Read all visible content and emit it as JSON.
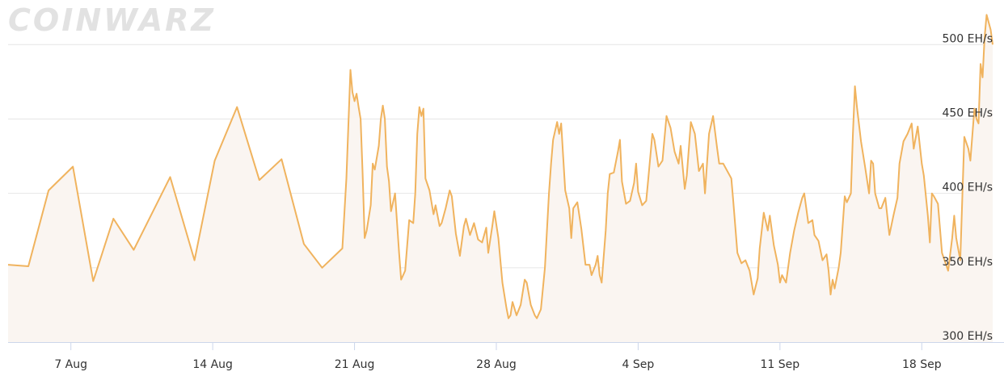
{
  "watermark": "COINWARZ",
  "chart_data": {
    "type": "area",
    "y_unit": "EH/s",
    "ylim": [
      300,
      530
    ],
    "y_ticks": [
      {
        "value": 300,
        "label": "300 EH/s"
      },
      {
        "value": 350,
        "label": "350 EH/s"
      },
      {
        "value": 400,
        "label": "400 EH/s"
      },
      {
        "value": 450,
        "label": "450 EH/s"
      },
      {
        "value": 500,
        "label": "500 EH/s"
      }
    ],
    "xlim": [
      2.9,
      51.5
    ],
    "x_ticks": [
      {
        "value": 6,
        "label": "7 Aug"
      },
      {
        "value": 13,
        "label": "14 Aug"
      },
      {
        "value": 20,
        "label": "21 Aug"
      },
      {
        "value": 27,
        "label": "28 Aug"
      },
      {
        "value": 34,
        "label": "4 Sep"
      },
      {
        "value": 41,
        "label": "11 Sep"
      },
      {
        "value": 48,
        "label": "18 Sep"
      }
    ],
    "grid": true,
    "line_color": "#f0b35e",
    "fill_color": "#faf5f1",
    "series": [
      {
        "x_unit": "days since 1 Aug",
        "points": [
          [
            2.9,
            352
          ],
          [
            3.9,
            351
          ],
          [
            4.9,
            402
          ],
          [
            6.1,
            418
          ],
          [
            7.1,
            341
          ],
          [
            8.1,
            383
          ],
          [
            9.1,
            362
          ],
          [
            10.9,
            411
          ],
          [
            12.1,
            355
          ],
          [
            13.1,
            422
          ],
          [
            14.2,
            458
          ],
          [
            15.3,
            409
          ],
          [
            16.4,
            423
          ],
          [
            17.5,
            366
          ],
          [
            18.4,
            350
          ],
          [
            19.4,
            363
          ],
          [
            19.6,
            410
          ],
          [
            19.8,
            483
          ],
          [
            19.9,
            468
          ],
          [
            20.0,
            462
          ],
          [
            20.1,
            467
          ],
          [
            20.2,
            458
          ],
          [
            20.3,
            450
          ],
          [
            20.4,
            413
          ],
          [
            20.5,
            370
          ],
          [
            20.6,
            375
          ],
          [
            20.8,
            392
          ],
          [
            20.9,
            420
          ],
          [
            21.0,
            416
          ],
          [
            21.2,
            432
          ],
          [
            21.3,
            450
          ],
          [
            21.4,
            459
          ],
          [
            21.5,
            450
          ],
          [
            21.6,
            418
          ],
          [
            21.7,
            408
          ],
          [
            21.8,
            388
          ],
          [
            22.0,
            400
          ],
          [
            22.1,
            380
          ],
          [
            22.2,
            360
          ],
          [
            22.3,
            342
          ],
          [
            22.5,
            348
          ],
          [
            22.7,
            382
          ],
          [
            22.9,
            380
          ],
          [
            23.0,
            400
          ],
          [
            23.1,
            440
          ],
          [
            23.2,
            458
          ],
          [
            23.3,
            452
          ],
          [
            23.4,
            457
          ],
          [
            23.5,
            410
          ],
          [
            23.7,
            402
          ],
          [
            23.9,
            386
          ],
          [
            24.0,
            392
          ],
          [
            24.2,
            378
          ],
          [
            24.3,
            380
          ],
          [
            24.5,
            390
          ],
          [
            24.7,
            402
          ],
          [
            24.8,
            398
          ],
          [
            25.0,
            373
          ],
          [
            25.2,
            358
          ],
          [
            25.4,
            378
          ],
          [
            25.5,
            383
          ],
          [
            25.7,
            372
          ],
          [
            25.9,
            380
          ],
          [
            26.1,
            369
          ],
          [
            26.3,
            367
          ],
          [
            26.5,
            377
          ],
          [
            26.6,
            360
          ],
          [
            26.8,
            378
          ],
          [
            26.9,
            388
          ],
          [
            27.1,
            370
          ],
          [
            27.3,
            340
          ],
          [
            27.5,
            323
          ],
          [
            27.6,
            316
          ],
          [
            27.7,
            318
          ],
          [
            27.8,
            327
          ],
          [
            28.0,
            318
          ],
          [
            28.2,
            325
          ],
          [
            28.4,
            342
          ],
          [
            28.5,
            340
          ],
          [
            28.7,
            325
          ],
          [
            28.9,
            318
          ],
          [
            29.0,
            316
          ],
          [
            29.2,
            322
          ],
          [
            29.4,
            350
          ],
          [
            29.6,
            400
          ],
          [
            29.7,
            420
          ],
          [
            29.8,
            436
          ],
          [
            30.0,
            448
          ],
          [
            30.1,
            440
          ],
          [
            30.2,
            447
          ],
          [
            30.4,
            402
          ],
          [
            30.6,
            390
          ],
          [
            30.7,
            370
          ],
          [
            30.8,
            390
          ],
          [
            31.0,
            394
          ],
          [
            31.2,
            376
          ],
          [
            31.4,
            352
          ],
          [
            31.6,
            352
          ],
          [
            31.7,
            345
          ],
          [
            31.9,
            352
          ],
          [
            32.0,
            358
          ],
          [
            32.1,
            345
          ],
          [
            32.2,
            340
          ],
          [
            32.4,
            375
          ],
          [
            32.5,
            400
          ],
          [
            32.6,
            413
          ],
          [
            32.8,
            414
          ],
          [
            33.0,
            428
          ],
          [
            33.1,
            436
          ],
          [
            33.2,
            408
          ],
          [
            33.4,
            393
          ],
          [
            33.6,
            395
          ],
          [
            33.8,
            407
          ],
          [
            33.9,
            420
          ],
          [
            34.0,
            401
          ],
          [
            34.2,
            392
          ],
          [
            34.4,
            395
          ],
          [
            34.5,
            410
          ],
          [
            34.7,
            440
          ],
          [
            34.8,
            436
          ],
          [
            35.0,
            418
          ],
          [
            35.2,
            422
          ],
          [
            35.4,
            452
          ],
          [
            35.6,
            444
          ],
          [
            35.8,
            428
          ],
          [
            36.0,
            420
          ],
          [
            36.1,
            432
          ],
          [
            36.3,
            403
          ],
          [
            36.4,
            412
          ],
          [
            36.6,
            448
          ],
          [
            36.8,
            440
          ],
          [
            37.0,
            415
          ],
          [
            37.2,
            420
          ],
          [
            37.3,
            400
          ],
          [
            37.5,
            440
          ],
          [
            37.7,
            452
          ],
          [
            37.9,
            430
          ],
          [
            38.0,
            420
          ],
          [
            38.2,
            420
          ],
          [
            38.4,
            415
          ],
          [
            38.6,
            410
          ],
          [
            38.7,
            394
          ],
          [
            38.9,
            360
          ],
          [
            39.1,
            353
          ],
          [
            39.3,
            355
          ],
          [
            39.5,
            348
          ],
          [
            39.7,
            332
          ],
          [
            39.9,
            343
          ],
          [
            40.0,
            363
          ],
          [
            40.2,
            387
          ],
          [
            40.4,
            375
          ],
          [
            40.5,
            385
          ],
          [
            40.7,
            365
          ],
          [
            40.9,
            352
          ],
          [
            41.0,
            340
          ],
          [
            41.1,
            345
          ],
          [
            41.3,
            340
          ],
          [
            41.5,
            360
          ],
          [
            41.7,
            375
          ],
          [
            41.9,
            387
          ],
          [
            42.1,
            397
          ],
          [
            42.2,
            400
          ],
          [
            42.4,
            380
          ],
          [
            42.6,
            382
          ],
          [
            42.7,
            372
          ],
          [
            42.9,
            368
          ],
          [
            43.1,
            355
          ],
          [
            43.3,
            359
          ],
          [
            43.4,
            348
          ],
          [
            43.5,
            332
          ],
          [
            43.6,
            342
          ],
          [
            43.7,
            336
          ],
          [
            43.9,
            350
          ],
          [
            44.0,
            360
          ],
          [
            44.2,
            398
          ],
          [
            44.3,
            394
          ],
          [
            44.5,
            400
          ],
          [
            44.6,
            440
          ],
          [
            44.7,
            472
          ],
          [
            44.8,
            458
          ],
          [
            45.0,
            435
          ],
          [
            45.2,
            418
          ],
          [
            45.4,
            400
          ],
          [
            45.5,
            422
          ],
          [
            45.6,
            420
          ],
          [
            45.7,
            400
          ],
          [
            45.9,
            390
          ],
          [
            46.0,
            390
          ],
          [
            46.2,
            397
          ],
          [
            46.4,
            372
          ],
          [
            46.6,
            385
          ],
          [
            46.8,
            397
          ],
          [
            46.9,
            420
          ],
          [
            47.1,
            435
          ],
          [
            47.3,
            440
          ],
          [
            47.5,
            447
          ],
          [
            47.6,
            430
          ],
          [
            47.8,
            445
          ],
          [
            48.0,
            420
          ],
          [
            48.1,
            412
          ],
          [
            48.3,
            385
          ],
          [
            48.4,
            367
          ],
          [
            48.5,
            400
          ],
          [
            48.6,
            398
          ],
          [
            48.8,
            393
          ],
          [
            49.0,
            360
          ],
          [
            49.2,
            352
          ],
          [
            49.3,
            348
          ],
          [
            49.5,
            370
          ],
          [
            49.6,
            385
          ],
          [
            49.7,
            370
          ],
          [
            49.9,
            355
          ],
          [
            50.1,
            438
          ],
          [
            50.3,
            430
          ],
          [
            50.4,
            422
          ],
          [
            50.6,
            457
          ],
          [
            50.7,
            450
          ],
          [
            50.8,
            447
          ],
          [
            50.9,
            487
          ],
          [
            51.0,
            478
          ],
          [
            51.1,
            505
          ],
          [
            51.2,
            520
          ],
          [
            51.4,
            510
          ],
          [
            51.5,
            500
          ]
        ]
      }
    ]
  }
}
